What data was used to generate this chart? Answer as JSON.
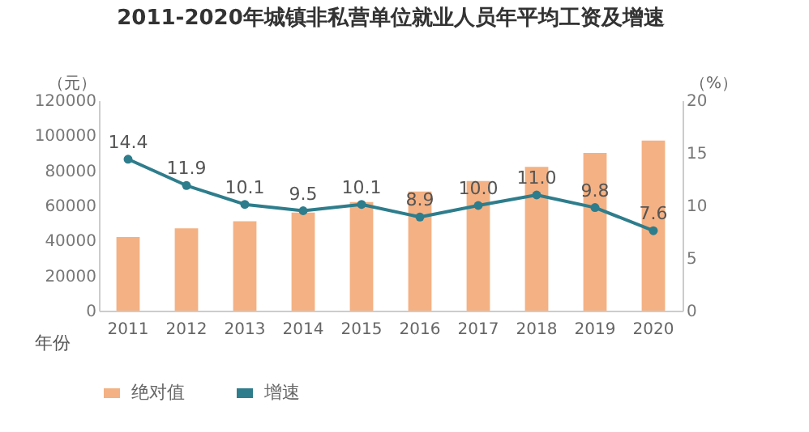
{
  "chart_data": {
    "type": "bar",
    "title": "2011-2020年城镇非私营单位就业人员年平均工资及增速",
    "xlabel": "年份",
    "ylabel": "（元）",
    "y2label": "（%）",
    "categories": [
      "2011",
      "2012",
      "2013",
      "2014",
      "2015",
      "2016",
      "2017",
      "2018",
      "2019",
      "2020"
    ],
    "series": [
      {
        "name": "绝对值",
        "color": "#f4b183",
        "values": [
          42000,
          47000,
          51000,
          56000,
          62000,
          68000,
          74000,
          82000,
          90000,
          97000
        ]
      },
      {
        "name": "增速",
        "type": "line",
        "axis": "y2",
        "color": "#2e7d8c",
        "marker": "circle",
        "line_style": "solid",
        "values": [
          14.4,
          11.9,
          10.1,
          9.5,
          10.1,
          8.9,
          10.0,
          11.0,
          9.8,
          7.6
        ],
        "value_labels": [
          "14.4",
          "11.9",
          "10.1",
          "9.5",
          "10.1",
          "8.9",
          "10.0",
          "11.0",
          "9.8",
          "7.6"
        ]
      }
    ],
    "ylim": [
      0,
      120000
    ],
    "yticks": [
      0,
      20000,
      40000,
      60000,
      80000,
      100000,
      120000
    ],
    "y2lim": [
      0,
      20
    ],
    "y2ticks": [
      0,
      5,
      10,
      15,
      20
    ],
    "grid": false,
    "legend": "bottom"
  }
}
